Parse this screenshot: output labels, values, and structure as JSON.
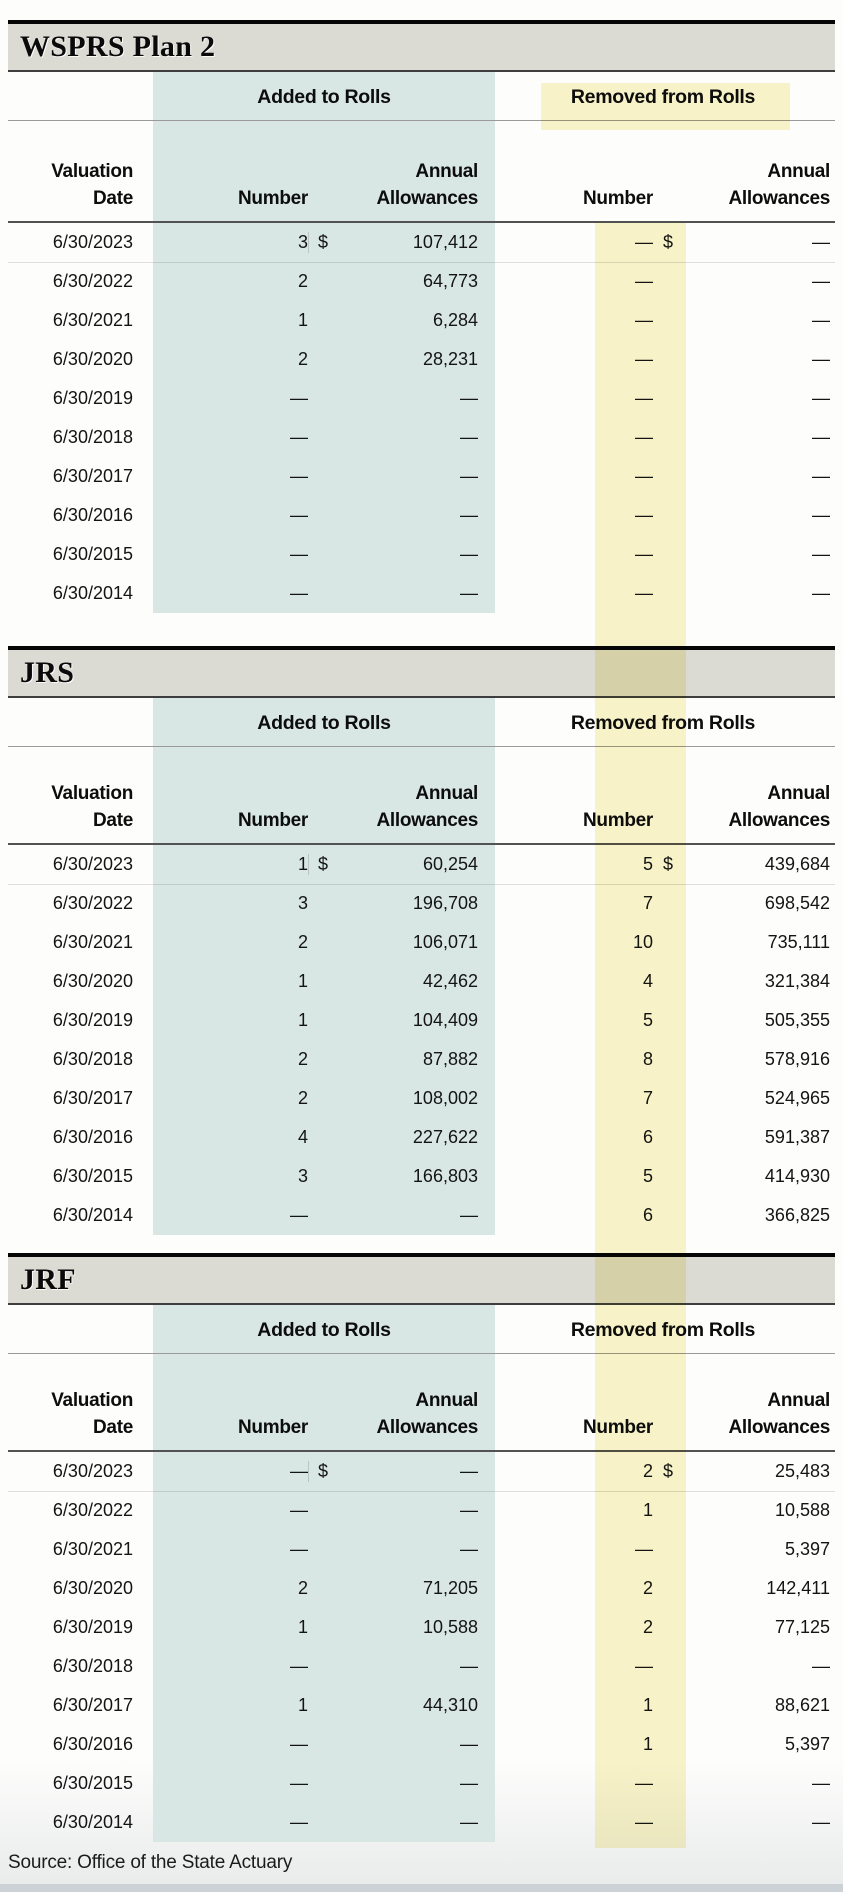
{
  "source_note": "Source: Office of the State Actuary",
  "colors": {
    "teal_band": "#d9e7e4",
    "yellow_highlight": "#faf4cb",
    "title_bar_gray": "#dbdad3",
    "bottom_strip": "#cdd2d6"
  },
  "tables": [
    {
      "title": "WSPRS Plan 2",
      "group_headers": {
        "added": "Added to Rolls",
        "removed": "Removed from Rolls"
      },
      "column_headers": {
        "valuation_line1": "Valuation",
        "valuation_line2": "Date",
        "added_number": "Number",
        "added_annual_line1": "Annual",
        "added_annual_line2": "Allowances",
        "removed_number": "Number",
        "removed_annual_line1": "Annual",
        "removed_annual_line2": "Allowances"
      },
      "rows": [
        {
          "date": "6/30/2023",
          "added_number": "3",
          "added_currency": "$",
          "added_allowance": "107,412",
          "removed_number": "—",
          "removed_currency": "$",
          "removed_allowance": "—"
        },
        {
          "date": "6/30/2022",
          "added_number": "2",
          "added_currency": "",
          "added_allowance": "64,773",
          "removed_number": "—",
          "removed_currency": "",
          "removed_allowance": "—"
        },
        {
          "date": "6/30/2021",
          "added_number": "1",
          "added_currency": "",
          "added_allowance": "6,284",
          "removed_number": "—",
          "removed_currency": "",
          "removed_allowance": "—"
        },
        {
          "date": "6/30/2020",
          "added_number": "2",
          "added_currency": "",
          "added_allowance": "28,231",
          "removed_number": "—",
          "removed_currency": "",
          "removed_allowance": "—"
        },
        {
          "date": "6/30/2019",
          "added_number": "—",
          "added_currency": "",
          "added_allowance": "—",
          "removed_number": "—",
          "removed_currency": "",
          "removed_allowance": "—"
        },
        {
          "date": "6/30/2018",
          "added_number": "—",
          "added_currency": "",
          "added_allowance": "—",
          "removed_number": "—",
          "removed_currency": "",
          "removed_allowance": "—"
        },
        {
          "date": "6/30/2017",
          "added_number": "—",
          "added_currency": "",
          "added_allowance": "—",
          "removed_number": "—",
          "removed_currency": "",
          "removed_allowance": "—"
        },
        {
          "date": "6/30/2016",
          "added_number": "—",
          "added_currency": "",
          "added_allowance": "—",
          "removed_number": "—",
          "removed_currency": "",
          "removed_allowance": "—"
        },
        {
          "date": "6/30/2015",
          "added_number": "—",
          "added_currency": "",
          "added_allowance": "—",
          "removed_number": "—",
          "removed_currency": "",
          "removed_allowance": "—"
        },
        {
          "date": "6/30/2014",
          "added_number": "—",
          "added_currency": "",
          "added_allowance": "—",
          "removed_number": "—",
          "removed_currency": "",
          "removed_allowance": "—"
        }
      ]
    },
    {
      "title": "JRS",
      "group_headers": {
        "added": "Added to Rolls",
        "removed": "Removed from Rolls"
      },
      "column_headers": {
        "valuation_line1": "Valuation",
        "valuation_line2": "Date",
        "added_number": "Number",
        "added_annual_line1": "Annual",
        "added_annual_line2": "Allowances",
        "removed_number": "Number",
        "removed_annual_line1": "Annual",
        "removed_annual_line2": "Allowances"
      },
      "rows": [
        {
          "date": "6/30/2023",
          "added_number": "1",
          "added_currency": "$",
          "added_allowance": "60,254",
          "removed_number": "5",
          "removed_currency": "$",
          "removed_allowance": "439,684"
        },
        {
          "date": "6/30/2022",
          "added_number": "3",
          "added_currency": "",
          "added_allowance": "196,708",
          "removed_number": "7",
          "removed_currency": "",
          "removed_allowance": "698,542"
        },
        {
          "date": "6/30/2021",
          "added_number": "2",
          "added_currency": "",
          "added_allowance": "106,071",
          "removed_number": "10",
          "removed_currency": "",
          "removed_allowance": "735,111"
        },
        {
          "date": "6/30/2020",
          "added_number": "1",
          "added_currency": "",
          "added_allowance": "42,462",
          "removed_number": "4",
          "removed_currency": "",
          "removed_allowance": "321,384"
        },
        {
          "date": "6/30/2019",
          "added_number": "1",
          "added_currency": "",
          "added_allowance": "104,409",
          "removed_number": "5",
          "removed_currency": "",
          "removed_allowance": "505,355"
        },
        {
          "date": "6/30/2018",
          "added_number": "2",
          "added_currency": "",
          "added_allowance": "87,882",
          "removed_number": "8",
          "removed_currency": "",
          "removed_allowance": "578,916"
        },
        {
          "date": "6/30/2017",
          "added_number": "2",
          "added_currency": "",
          "added_allowance": "108,002",
          "removed_number": "7",
          "removed_currency": "",
          "removed_allowance": "524,965"
        },
        {
          "date": "6/30/2016",
          "added_number": "4",
          "added_currency": "",
          "added_allowance": "227,622",
          "removed_number": "6",
          "removed_currency": "",
          "removed_allowance": "591,387"
        },
        {
          "date": "6/30/2015",
          "added_number": "3",
          "added_currency": "",
          "added_allowance": "166,803",
          "removed_number": "5",
          "removed_currency": "",
          "removed_allowance": "414,930"
        },
        {
          "date": "6/30/2014",
          "added_number": "—",
          "added_currency": "",
          "added_allowance": "—",
          "removed_number": "6",
          "removed_currency": "",
          "removed_allowance": "366,825"
        }
      ]
    },
    {
      "title": "JRF",
      "group_headers": {
        "added": "Added to Rolls",
        "removed": "Removed from Rolls"
      },
      "column_headers": {
        "valuation_line1": "Valuation",
        "valuation_line2": "Date",
        "added_number": "Number",
        "added_annual_line1": "Annual",
        "added_annual_line2": "Allowances",
        "removed_number": "Number",
        "removed_annual_line1": "Annual",
        "removed_annual_line2": "Allowances"
      },
      "rows": [
        {
          "date": "6/30/2023",
          "added_number": "—",
          "added_currency": "$",
          "added_allowance": "—",
          "removed_number": "2",
          "removed_currency": "$",
          "removed_allowance": "25,483"
        },
        {
          "date": "6/30/2022",
          "added_number": "—",
          "added_currency": "",
          "added_allowance": "—",
          "removed_number": "1",
          "removed_currency": "",
          "removed_allowance": "10,588"
        },
        {
          "date": "6/30/2021",
          "added_number": "—",
          "added_currency": "",
          "added_allowance": "—",
          "removed_number": "—",
          "removed_currency": "",
          "removed_allowance": "5,397"
        },
        {
          "date": "6/30/2020",
          "added_number": "2",
          "added_currency": "",
          "added_allowance": "71,205",
          "removed_number": "2",
          "removed_currency": "",
          "removed_allowance": "142,411"
        },
        {
          "date": "6/30/2019",
          "added_number": "1",
          "added_currency": "",
          "added_allowance": "10,588",
          "removed_number": "2",
          "removed_currency": "",
          "removed_allowance": "77,125"
        },
        {
          "date": "6/30/2018",
          "added_number": "—",
          "added_currency": "",
          "added_allowance": "—",
          "removed_number": "—",
          "removed_currency": "",
          "removed_allowance": "—"
        },
        {
          "date": "6/30/2017",
          "added_number": "1",
          "added_currency": "",
          "added_allowance": "44,310",
          "removed_number": "1",
          "removed_currency": "",
          "removed_allowance": "88,621"
        },
        {
          "date": "6/30/2016",
          "added_number": "—",
          "added_currency": "",
          "added_allowance": "—",
          "removed_number": "1",
          "removed_currency": "",
          "removed_allowance": "5,397"
        },
        {
          "date": "6/30/2015",
          "added_number": "—",
          "added_currency": "",
          "added_allowance": "—",
          "removed_number": "—",
          "removed_currency": "",
          "removed_allowance": "—"
        },
        {
          "date": "6/30/2014",
          "added_number": "—",
          "added_currency": "",
          "added_allowance": "—",
          "removed_number": "—",
          "removed_currency": "",
          "removed_allowance": "—"
        }
      ]
    }
  ]
}
